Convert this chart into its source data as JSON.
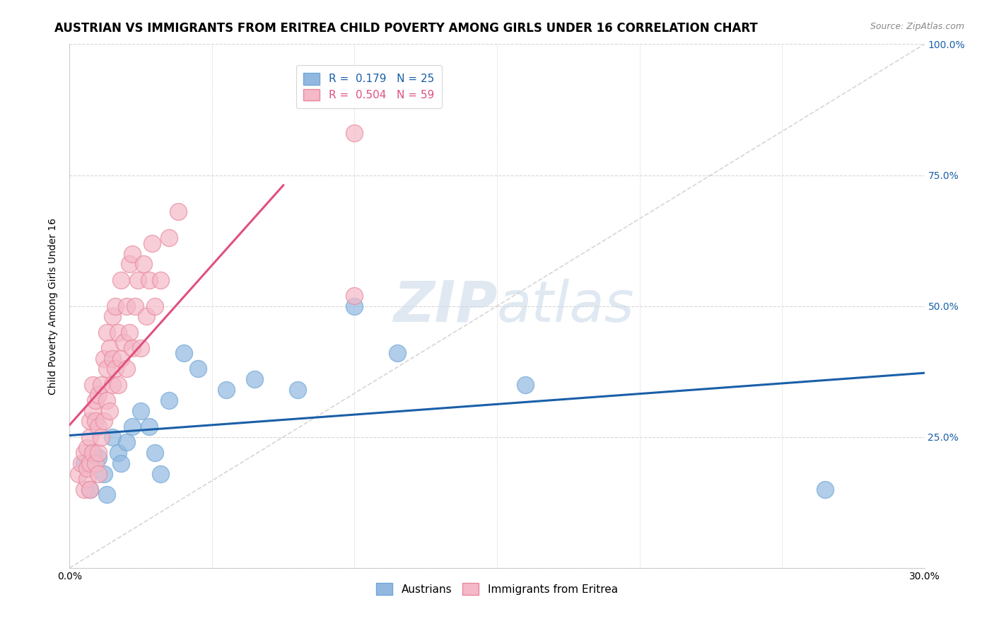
{
  "title": "AUSTRIAN VS IMMIGRANTS FROM ERITREA CHILD POVERTY AMONG GIRLS UNDER 16 CORRELATION CHART",
  "source": "Source: ZipAtlas.com",
  "ylabel": "Child Poverty Among Girls Under 16",
  "xlim": [
    0.0,
    0.3
  ],
  "ylim": [
    0.0,
    1.0
  ],
  "xticks": [
    0.0,
    0.05,
    0.1,
    0.15,
    0.2,
    0.25,
    0.3
  ],
  "yticks": [
    0.0,
    0.25,
    0.5,
    0.75,
    1.0
  ],
  "ytick_labels": [
    "",
    "25.0%",
    "50.0%",
    "75.0%",
    "100.0%"
  ],
  "legend_r1": "R =  0.179   N = 25",
  "legend_r2": "R =  0.504   N = 59",
  "blue_color": "#92b8e0",
  "pink_color": "#f4b8c8",
  "blue_edge_color": "#6fa8d8",
  "pink_edge_color": "#e8899a",
  "blue_line_color": "#1a5fa8",
  "pink_line_color": "#e05080",
  "ref_line_color": "#cccccc",
  "watermark_color": "#c8d8e8",
  "title_fontsize": 12,
  "axis_fontsize": 10,
  "tick_fontsize": 10,
  "austrians_x": [
    0.005,
    0.007,
    0.008,
    0.01,
    0.012,
    0.013,
    0.015,
    0.017,
    0.018,
    0.02,
    0.022,
    0.025,
    0.028,
    0.03,
    0.032,
    0.035,
    0.04,
    0.045,
    0.055,
    0.065,
    0.08,
    0.1,
    0.115,
    0.16,
    0.265
  ],
  "austrians_y": [
    0.2,
    0.15,
    0.22,
    0.21,
    0.18,
    0.14,
    0.25,
    0.22,
    0.2,
    0.24,
    0.27,
    0.3,
    0.27,
    0.22,
    0.18,
    0.32,
    0.41,
    0.38,
    0.34,
    0.36,
    0.34,
    0.5,
    0.41,
    0.35,
    0.15
  ],
  "eritrea_x": [
    0.003,
    0.004,
    0.005,
    0.005,
    0.006,
    0.006,
    0.006,
    0.007,
    0.007,
    0.007,
    0.007,
    0.008,
    0.008,
    0.008,
    0.009,
    0.009,
    0.009,
    0.01,
    0.01,
    0.01,
    0.01,
    0.011,
    0.011,
    0.012,
    0.012,
    0.013,
    0.013,
    0.013,
    0.014,
    0.014,
    0.015,
    0.015,
    0.015,
    0.016,
    0.016,
    0.017,
    0.017,
    0.018,
    0.018,
    0.019,
    0.02,
    0.02,
    0.021,
    0.021,
    0.022,
    0.022,
    0.023,
    0.024,
    0.025,
    0.026,
    0.027,
    0.028,
    0.029,
    0.03,
    0.032,
    0.035,
    0.038,
    0.1,
    0.1
  ],
  "eritrea_y": [
    0.18,
    0.2,
    0.15,
    0.22,
    0.17,
    0.19,
    0.23,
    0.15,
    0.2,
    0.25,
    0.28,
    0.22,
    0.3,
    0.35,
    0.2,
    0.28,
    0.32,
    0.18,
    0.22,
    0.27,
    0.33,
    0.25,
    0.35,
    0.28,
    0.4,
    0.32,
    0.38,
    0.45,
    0.3,
    0.42,
    0.35,
    0.4,
    0.48,
    0.38,
    0.5,
    0.35,
    0.45,
    0.4,
    0.55,
    0.43,
    0.38,
    0.5,
    0.45,
    0.58,
    0.42,
    0.6,
    0.5,
    0.55,
    0.42,
    0.58,
    0.48,
    0.55,
    0.62,
    0.5,
    0.55,
    0.63,
    0.68,
    0.83,
    0.52
  ],
  "pink_line_x_end": 0.075
}
